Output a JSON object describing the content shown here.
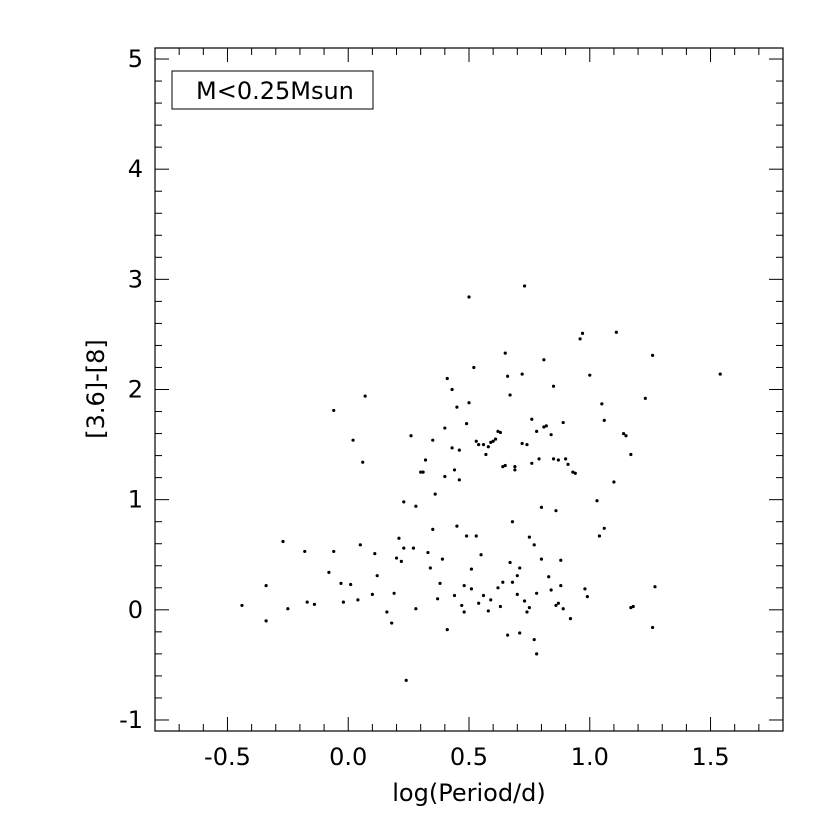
{
  "chart_data": {
    "type": "scatter",
    "title": "",
    "xlabel": "log(Period/d)",
    "ylabel": "[3.6]-[8]",
    "xlim": [
      -0.8,
      1.8
    ],
    "ylim": [
      -1.1,
      5.1
    ],
    "xticks": [
      -0.5,
      0.0,
      0.5,
      1.0,
      1.5
    ],
    "xtick_labels": [
      "-0.5",
      "0.0",
      "0.5",
      "1.0",
      "1.5"
    ],
    "yticks": [
      -1,
      0,
      1,
      2,
      3,
      4,
      5
    ],
    "ytick_labels": [
      "-1",
      "0",
      "1",
      "2",
      "3",
      "4",
      "5"
    ],
    "grid": false,
    "legend": {
      "label": "M<0.25Msun",
      "position": "top-left"
    },
    "series": [
      {
        "points": [
          [
            -0.44,
            0.04
          ],
          [
            -0.34,
            0.22
          ],
          [
            -0.34,
            -0.1
          ],
          [
            -0.27,
            0.62
          ],
          [
            -0.25,
            0.01
          ],
          [
            -0.18,
            0.53
          ],
          [
            -0.17,
            0.07
          ],
          [
            -0.14,
            0.05
          ],
          [
            -0.08,
            0.34
          ],
          [
            -0.06,
            0.53
          ],
          [
            -0.06,
            1.81
          ],
          [
            -0.03,
            0.24
          ],
          [
            -0.02,
            0.07
          ],
          [
            0.01,
            0.23
          ],
          [
            0.02,
            1.54
          ],
          [
            0.04,
            0.09
          ],
          [
            0.05,
            0.59
          ],
          [
            0.06,
            1.34
          ],
          [
            0.07,
            1.94
          ],
          [
            0.1,
            0.14
          ],
          [
            0.11,
            0.51
          ],
          [
            0.12,
            0.31
          ],
          [
            0.16,
            -0.02
          ],
          [
            0.18,
            -0.12
          ],
          [
            0.19,
            0.15
          ],
          [
            0.2,
            0.47
          ],
          [
            0.21,
            0.65
          ],
          [
            0.22,
            0.44
          ],
          [
            0.23,
            0.56
          ],
          [
            0.23,
            0.98
          ],
          [
            0.24,
            -0.64
          ],
          [
            0.26,
            1.58
          ],
          [
            0.27,
            0.56
          ],
          [
            0.28,
            0.94
          ],
          [
            0.28,
            0.01
          ],
          [
            0.3,
            1.25
          ],
          [
            0.31,
            1.25
          ],
          [
            0.32,
            1.36
          ],
          [
            0.33,
            0.52
          ],
          [
            0.34,
            0.38
          ],
          [
            0.35,
            0.73
          ],
          [
            0.35,
            1.54
          ],
          [
            0.36,
            1.05
          ],
          [
            0.37,
            0.1
          ],
          [
            0.38,
            0.24
          ],
          [
            0.39,
            0.46
          ],
          [
            0.4,
            1.21
          ],
          [
            0.4,
            1.65
          ],
          [
            0.41,
            2.1
          ],
          [
            0.41,
            -0.18
          ],
          [
            0.43,
            2.0
          ],
          [
            0.43,
            1.47
          ],
          [
            0.44,
            1.27
          ],
          [
            0.44,
            0.13
          ],
          [
            0.45,
            0.76
          ],
          [
            0.45,
            1.84
          ],
          [
            0.46,
            1.45
          ],
          [
            0.46,
            1.18
          ],
          [
            0.47,
            0.04
          ],
          [
            0.48,
            -0.02
          ],
          [
            0.48,
            0.22
          ],
          [
            0.49,
            0.67
          ],
          [
            0.49,
            1.69
          ],
          [
            0.5,
            2.84
          ],
          [
            0.5,
            1.88
          ],
          [
            0.51,
            0.19
          ],
          [
            0.51,
            0.37
          ],
          [
            0.52,
            2.2
          ],
          [
            0.53,
            1.53
          ],
          [
            0.53,
            0.67
          ],
          [
            0.54,
            1.5
          ],
          [
            0.54,
            0.06
          ],
          [
            0.55,
            0.5
          ],
          [
            0.56,
            1.5
          ],
          [
            0.56,
            0.13
          ],
          [
            0.57,
            1.41
          ],
          [
            0.58,
            1.48
          ],
          [
            0.58,
            -0.01
          ],
          [
            0.59,
            1.52
          ],
          [
            0.59,
            0.09
          ],
          [
            0.6,
            1.53
          ],
          [
            0.61,
            1.55
          ],
          [
            0.62,
            1.62
          ],
          [
            0.62,
            0.2
          ],
          [
            0.63,
            1.61
          ],
          [
            0.63,
            0.03
          ],
          [
            0.64,
            1.3
          ],
          [
            0.64,
            0.25
          ],
          [
            0.65,
            2.33
          ],
          [
            0.65,
            1.31
          ],
          [
            0.66,
            2.12
          ],
          [
            0.66,
            -0.23
          ],
          [
            0.67,
            1.95
          ],
          [
            0.67,
            0.43
          ],
          [
            0.68,
            0.25
          ],
          [
            0.68,
            0.8
          ],
          [
            0.69,
            1.3
          ],
          [
            0.69,
            1.27
          ],
          [
            0.7,
            0.31
          ],
          [
            0.7,
            0.14
          ],
          [
            0.71,
            0.38
          ],
          [
            0.71,
            -0.21
          ],
          [
            0.72,
            2.14
          ],
          [
            0.72,
            1.51
          ],
          [
            0.73,
            2.94
          ],
          [
            0.73,
            0.08
          ],
          [
            0.74,
            -0.02
          ],
          [
            0.74,
            1.5
          ],
          [
            0.75,
            0.02
          ],
          [
            0.75,
            0.66
          ],
          [
            0.76,
            1.73
          ],
          [
            0.76,
            1.33
          ],
          [
            0.77,
            0.59
          ],
          [
            0.77,
            -0.27
          ],
          [
            0.78,
            1.62
          ],
          [
            0.78,
            0.15
          ],
          [
            0.78,
            -0.4
          ],
          [
            0.79,
            1.37
          ],
          [
            0.8,
            0.46
          ],
          [
            0.8,
            0.93
          ],
          [
            0.81,
            1.66
          ],
          [
            0.81,
            2.27
          ],
          [
            0.82,
            1.67
          ],
          [
            0.83,
            0.3
          ],
          [
            0.84,
            0.18
          ],
          [
            0.84,
            1.59
          ],
          [
            0.85,
            2.03
          ],
          [
            0.85,
            1.37
          ],
          [
            0.86,
            0.04
          ],
          [
            0.86,
            0.9
          ],
          [
            0.87,
            0.06
          ],
          [
            0.87,
            1.36
          ],
          [
            0.88,
            0.22
          ],
          [
            0.88,
            0.45
          ],
          [
            0.89,
            0.01
          ],
          [
            0.89,
            1.7
          ],
          [
            0.9,
            1.37
          ],
          [
            0.91,
            1.32
          ],
          [
            0.92,
            -0.08
          ],
          [
            0.93,
            1.25
          ],
          [
            0.94,
            1.24
          ],
          [
            0.96,
            2.46
          ],
          [
            0.97,
            2.51
          ],
          [
            0.98,
            0.19
          ],
          [
            0.99,
            0.12
          ],
          [
            1.0,
            2.13
          ],
          [
            1.03,
            0.99
          ],
          [
            1.04,
            0.67
          ],
          [
            1.05,
            1.87
          ],
          [
            1.06,
            1.72
          ],
          [
            1.06,
            0.74
          ],
          [
            1.1,
            1.16
          ],
          [
            1.11,
            2.52
          ],
          [
            1.14,
            1.6
          ],
          [
            1.15,
            1.58
          ],
          [
            1.17,
            1.41
          ],
          [
            1.17,
            0.02
          ],
          [
            1.18,
            0.03
          ],
          [
            1.23,
            1.92
          ],
          [
            1.26,
            2.31
          ],
          [
            1.26,
            -0.16
          ],
          [
            1.27,
            0.21
          ],
          [
            1.54,
            2.14
          ]
        ]
      }
    ]
  }
}
